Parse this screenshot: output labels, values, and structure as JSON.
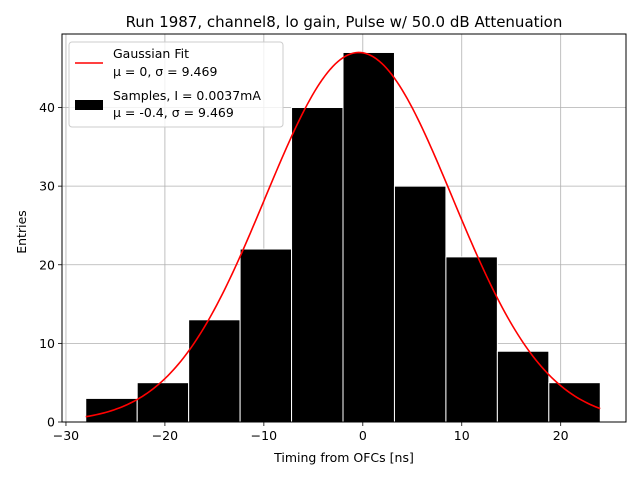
{
  "chart_data": {
    "type": "bar",
    "title": "Run 1987, channel8, lo gain, Pulse w/ 50.0 dB Attenuation",
    "xlabel": "Timing from OFCs [ns]",
    "ylabel": "Entries",
    "xlim": [
      -30.4,
      26.6
    ],
    "ylim": [
      0,
      49.35
    ],
    "xticks": [
      -30,
      -20,
      -10,
      0,
      10,
      20
    ],
    "yticks": [
      0,
      10,
      20,
      30,
      40
    ],
    "grid": true,
    "legend_position": "top-left",
    "bins": [
      {
        "left": -28,
        "right": -22.8,
        "count": 3
      },
      {
        "left": -22.8,
        "right": -17.6,
        "count": 5
      },
      {
        "left": -17.6,
        "right": -12.4,
        "count": 13
      },
      {
        "left": -12.4,
        "right": -7.2,
        "count": 22
      },
      {
        "left": -7.2,
        "right": -2.0,
        "count": 40
      },
      {
        "left": -2.0,
        "right": 3.2,
        "count": 47
      },
      {
        "left": 3.2,
        "right": 8.4,
        "count": 30
      },
      {
        "left": 8.4,
        "right": 13.6,
        "count": 21
      },
      {
        "left": 13.6,
        "right": 18.8,
        "count": 9
      },
      {
        "left": 18.8,
        "right": 24.0,
        "count": 5
      }
    ],
    "fit": {
      "mu": -0.4,
      "sigma": 9.469,
      "amplitude": 47,
      "x_range": [
        -28,
        24
      ]
    },
    "series": [
      {
        "name": "Gaussian Fit",
        "stats": "μ = 0, σ = 9.469",
        "color": "#ff0000",
        "kind": "line"
      },
      {
        "name": "Samples, I = 0.0037mA",
        "stats": "μ = -0.4, σ = 9.469",
        "color": "#000000",
        "kind": "bar"
      }
    ]
  }
}
